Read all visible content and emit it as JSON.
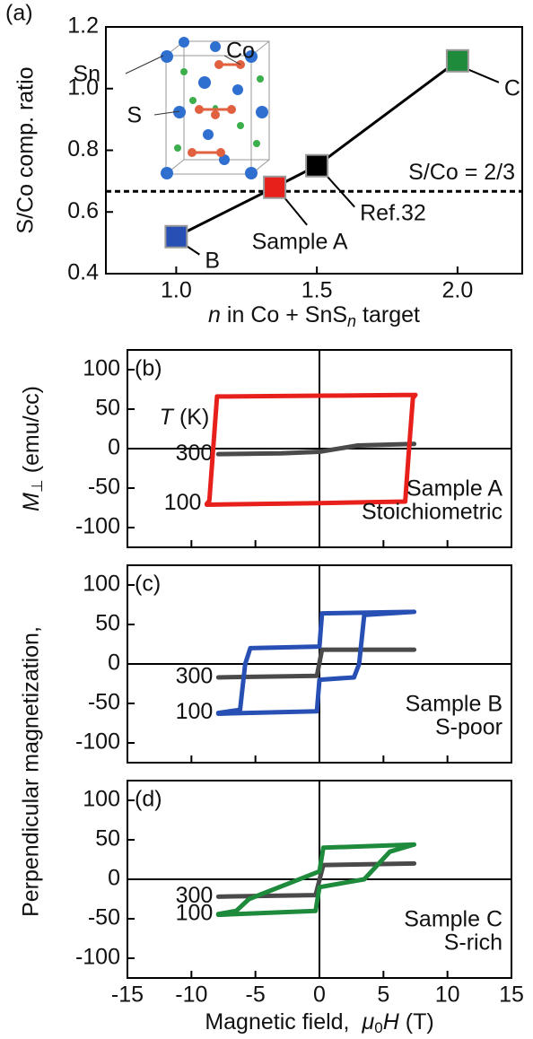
{
  "chart_data": [
    {
      "type": "line",
      "panel_label": "(a)",
      "ylabel": "S/Co comp. ratio",
      "xlabel": [
        "n",
        "in Co + SnS",
        "n",
        "target"
      ],
      "x": [
        1.0,
        1.35,
        1.5,
        2.0
      ],
      "values": [
        0.52,
        0.68,
        0.75,
        1.09
      ],
      "point_labels": [
        "B",
        "Sample A",
        "Ref.32",
        "C"
      ],
      "marker_colors": [
        "#2850b4",
        "#e8201c",
        "#000000",
        "#1e8a3c"
      ],
      "line_color": "#000000",
      "xlim": [
        0.75,
        2.23
      ],
      "xticks": [
        {
          "value": 1,
          "label": "1.0"
        },
        1.5,
        {
          "value": 2,
          "label": "2.0"
        }
      ],
      "ylim": [
        0.4,
        1.2
      ],
      "yticks": [
        0.4,
        0.6,
        0.8,
        {
          "value": 1,
          "label": "1.0"
        },
        1.2
      ],
      "hline": {
        "value": 0.667,
        "label": "S/Co = 2/3"
      },
      "inset_labels": [
        {
          "text": "Sn",
          "color": "#2850b4"
        },
        {
          "text": "S",
          "color": "#1e8a3c"
        },
        {
          "text": "Co",
          "color": "#e8201c"
        }
      ]
    },
    {
      "type": "line",
      "panel_label": "(b)",
      "ylabel": {
        "text": "Perpendicular magnetization,",
        "symbol": "M",
        "sub": "⊥",
        "unit": "(emu/cc)"
      },
      "legend_title": {
        "symbol": "T",
        "unit": "(K)"
      },
      "series": [
        {
          "name": "300",
          "color": "#4a4a4a",
          "x": [
            -7.9,
            -3,
            0,
            3,
            7.4
          ],
          "values": [
            -7,
            -6,
            -4,
            4,
            6
          ]
        },
        {
          "name": "100",
          "color": "#e8201c",
          "x": [
            7.5,
            0,
            -8.0,
            -8.3,
            -8.6,
            -8.8,
            -8.8,
            0,
            6.7,
            7.0,
            7.3,
            7.5
          ],
          "values": [
            68,
            67,
            66,
            0,
            -66,
            -70,
            -71,
            -69,
            -67,
            0,
            64,
            68
          ]
        }
      ],
      "annotations": [
        "Sample A",
        "Stoichiometric"
      ],
      "annotation_color": "#e8201c",
      "xlim": [
        -15,
        15
      ],
      "xticks": [
        -15,
        -10,
        -5,
        0,
        5,
        10,
        15
      ],
      "xtick_labels": false,
      "ylim": [
        -125,
        125
      ],
      "yticks": [
        -100,
        -50,
        0,
        50,
        100
      ],
      "zero_lines": true
    },
    {
      "type": "line",
      "panel_label": "(c)",
      "series": [
        {
          "name": "300",
          "color": "#4a4a4a",
          "x": [
            -7.9,
            -0.2,
            0.2,
            7.4
          ],
          "values": [
            -17,
            -15,
            18,
            18
          ]
        },
        {
          "name": "100",
          "color": "#2850b4",
          "x": [
            7.4,
            0.2,
            0,
            -5.4,
            -5.8,
            -6.2,
            -7.9,
            -7.9,
            -0.2,
            0,
            2.7,
            3.1,
            3.5,
            7.4
          ],
          "values": [
            66,
            64,
            22,
            20,
            0,
            -58,
            -62,
            -63,
            -60,
            -20,
            -17,
            0,
            62,
            66
          ]
        }
      ],
      "annotations": [
        "Sample B",
        "S-poor"
      ],
      "annotation_color": "#2850b4",
      "xlim": [
        -15,
        15
      ],
      "xticks": [
        -15,
        -10,
        -5,
        0,
        5,
        10,
        15
      ],
      "xtick_labels": false,
      "ylim": [
        -125,
        125
      ],
      "yticks": [
        -100,
        -50,
        0,
        50,
        100
      ],
      "zero_lines": true
    },
    {
      "type": "line",
      "panel_label": "(d)",
      "xlabel": {
        "text": "Magnetic field,",
        "symbol": "μ",
        "sub": "0",
        "var": "H",
        "unit": "(T)"
      },
      "series": [
        {
          "name": "300",
          "color": "#4a4a4a",
          "x": [
            -7.9,
            -0.3,
            0.3,
            7.4
          ],
          "values": [
            -22,
            -20,
            18,
            20
          ]
        },
        {
          "name": "100",
          "color": "#1e8a3c",
          "x": [
            7.4,
            0.3,
            0,
            -5.5,
            -6.5,
            -7.9,
            -7.9,
            -0.3,
            0,
            3.5,
            5.5,
            7.4
          ],
          "values": [
            44,
            40,
            10,
            -25,
            -40,
            -44,
            -45,
            -40,
            -10,
            0,
            35,
            44
          ]
        }
      ],
      "annotations": [
        "Sample C",
        "S-rich"
      ],
      "annotation_color": "#1e8a3c",
      "xlim": [
        -15,
        15
      ],
      "xticks": [
        -15,
        -10,
        -5,
        0,
        5,
        10,
        15
      ],
      "xtick_labels": true,
      "ylim": [
        -125,
        125
      ],
      "yticks": [
        -100,
        -50,
        0,
        50,
        100
      ],
      "zero_lines": true
    }
  ]
}
